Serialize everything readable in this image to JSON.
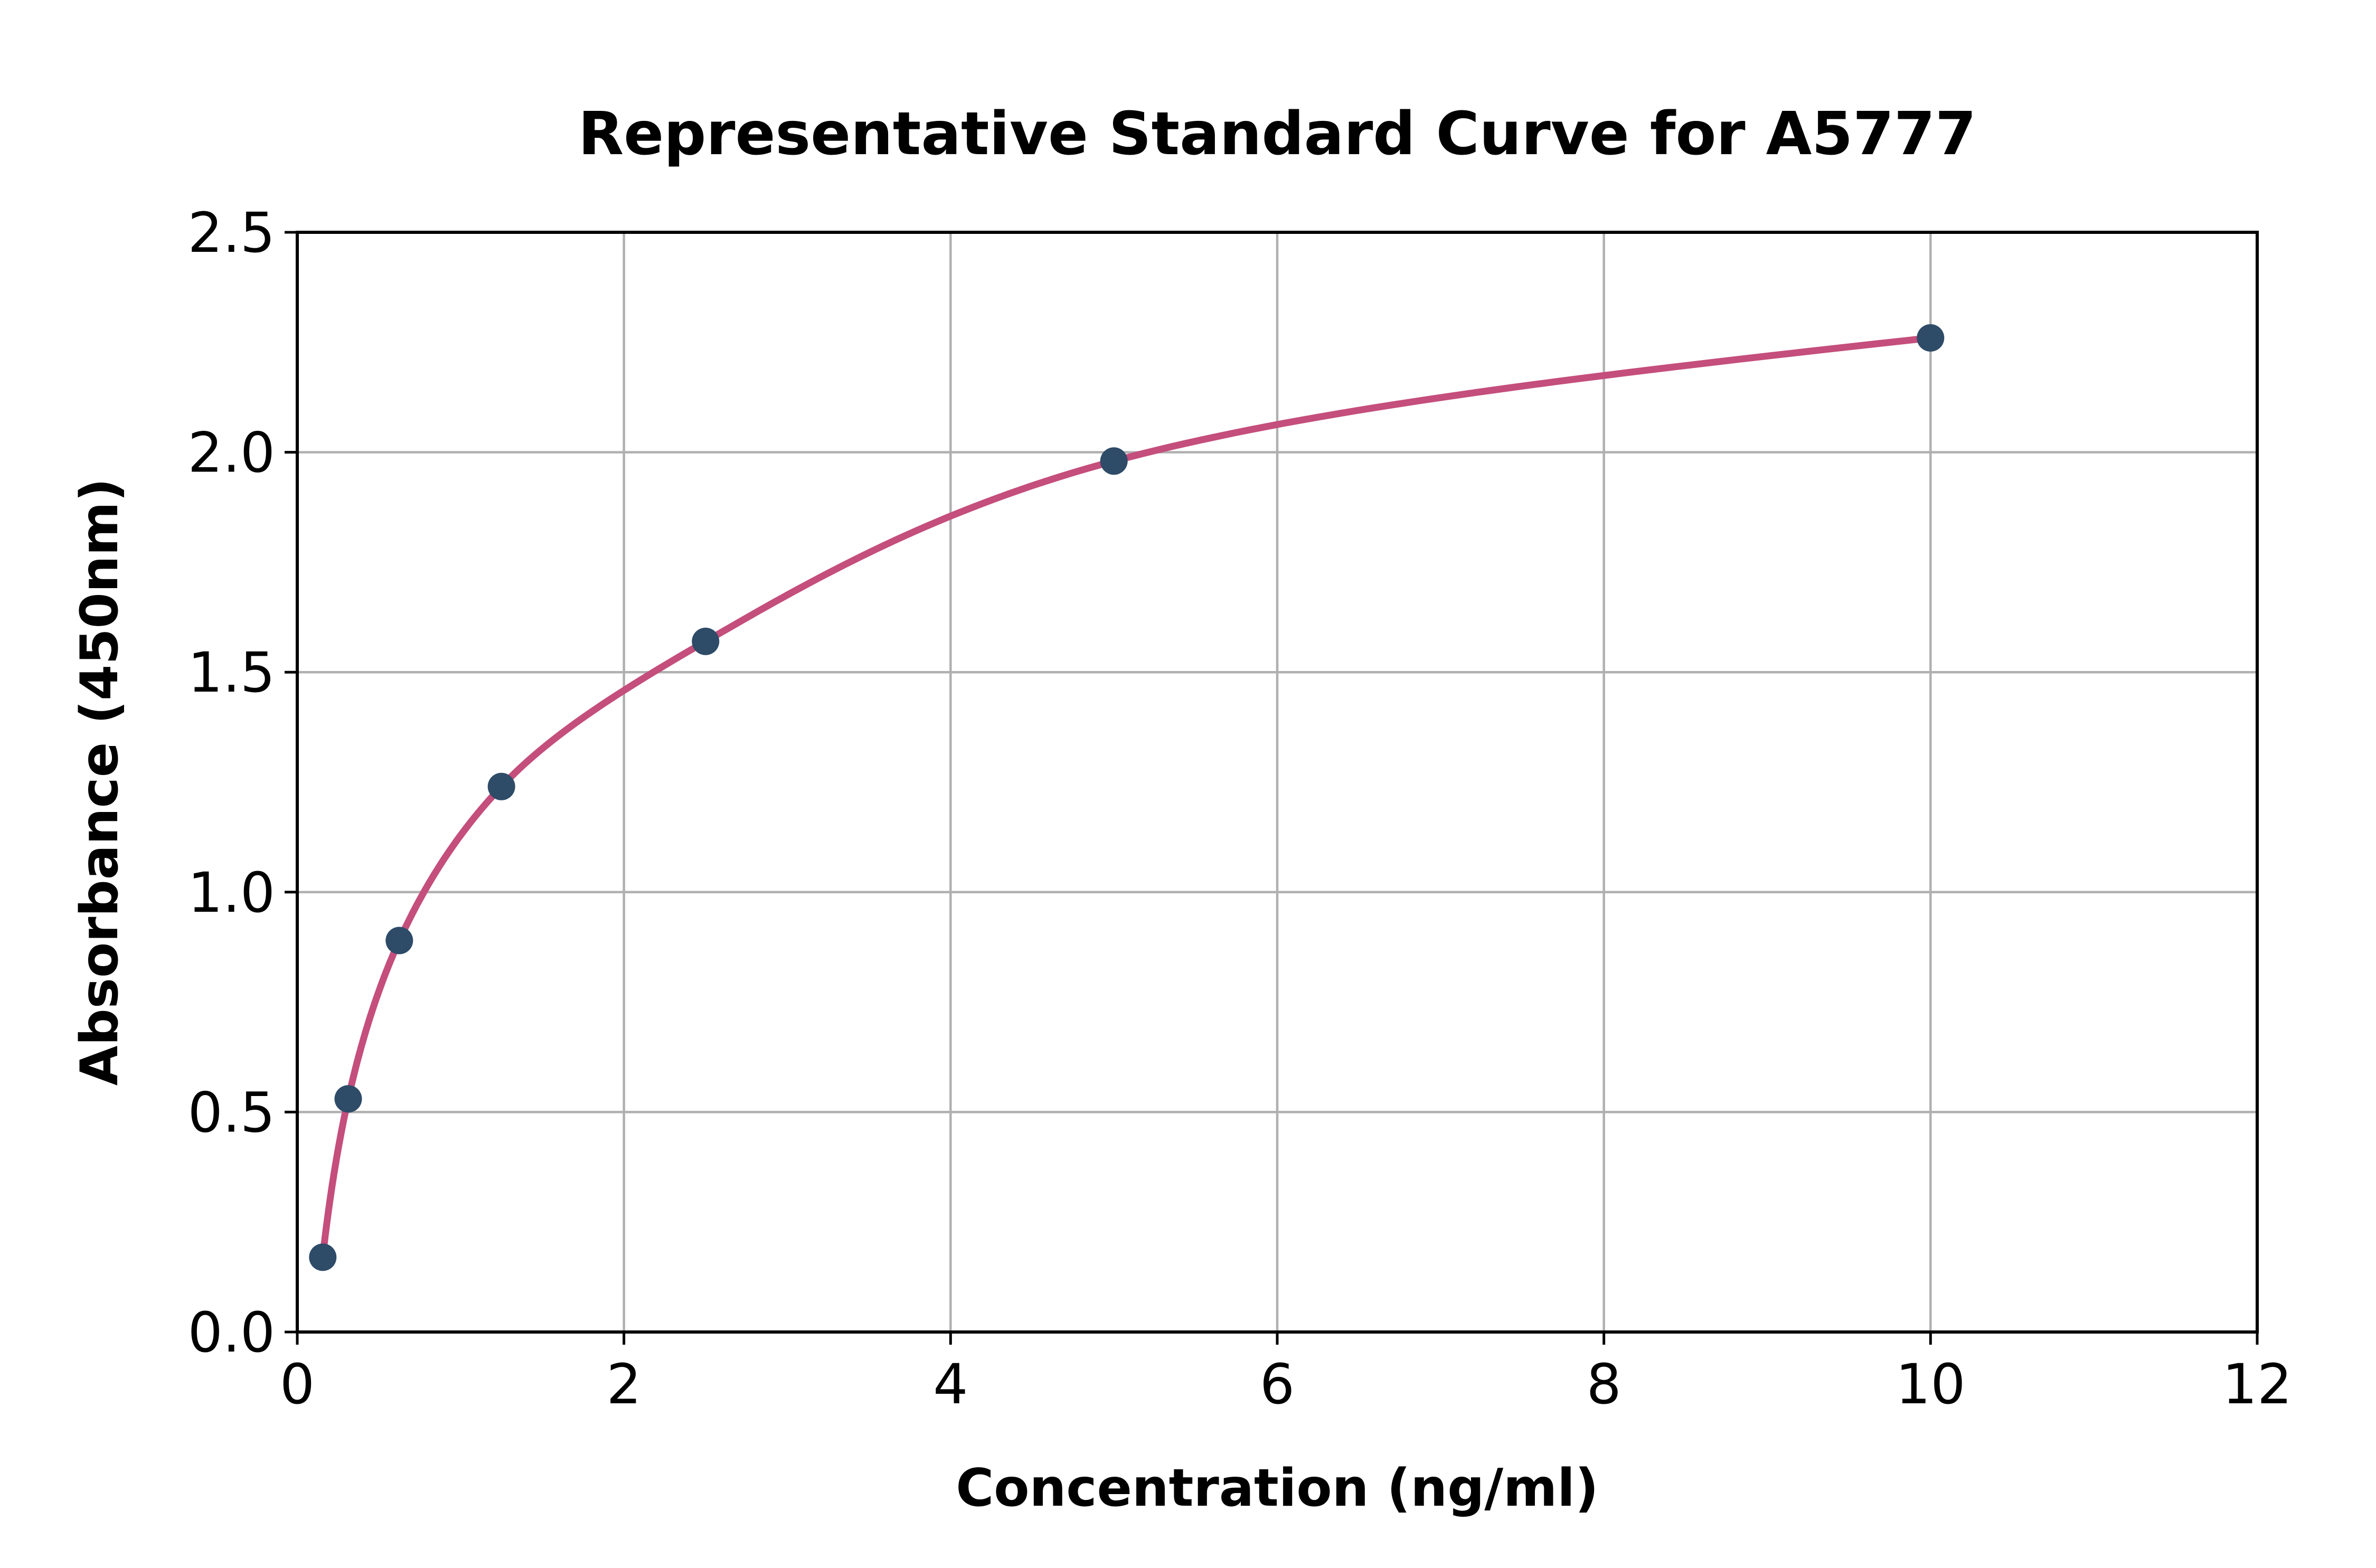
{
  "figure": {
    "background": "#ffffff",
    "text_color": "#000000"
  },
  "chart_data": {
    "type": "scatter",
    "title": "Representative Standard Curve for A5777",
    "xlabel": "Concentration (ng/ml)",
    "ylabel": "Absorbance (450nm)",
    "xlim": [
      0,
      12
    ],
    "ylim": [
      0,
      2.5
    ],
    "xticks": {
      "values": [
        0,
        2,
        4,
        6,
        8,
        10,
        12
      ],
      "labels": [
        "0",
        "2",
        "4",
        "6",
        "8",
        "10",
        "12"
      ]
    },
    "yticks": {
      "values": [
        0,
        0.5,
        1.0,
        1.5,
        2.0,
        2.5
      ],
      "labels": [
        "0.0",
        "0.5",
        "1.0",
        "1.5",
        "2.0",
        "2.5"
      ]
    },
    "grid": true,
    "grid_color": "#b0b0b0",
    "legend_position": "none",
    "series": [
      {
        "name": "standard-curve",
        "x": [
          0.156,
          0.312,
          0.625,
          1.25,
          2.5,
          5,
          10
        ],
        "y": [
          0.17,
          0.53,
          0.89,
          1.24,
          1.57,
          1.98,
          2.26
        ],
        "marker": "circle",
        "marker_color": "#2e4b68",
        "line_color": "#c44e7c",
        "line_style": "smooth"
      }
    ]
  }
}
